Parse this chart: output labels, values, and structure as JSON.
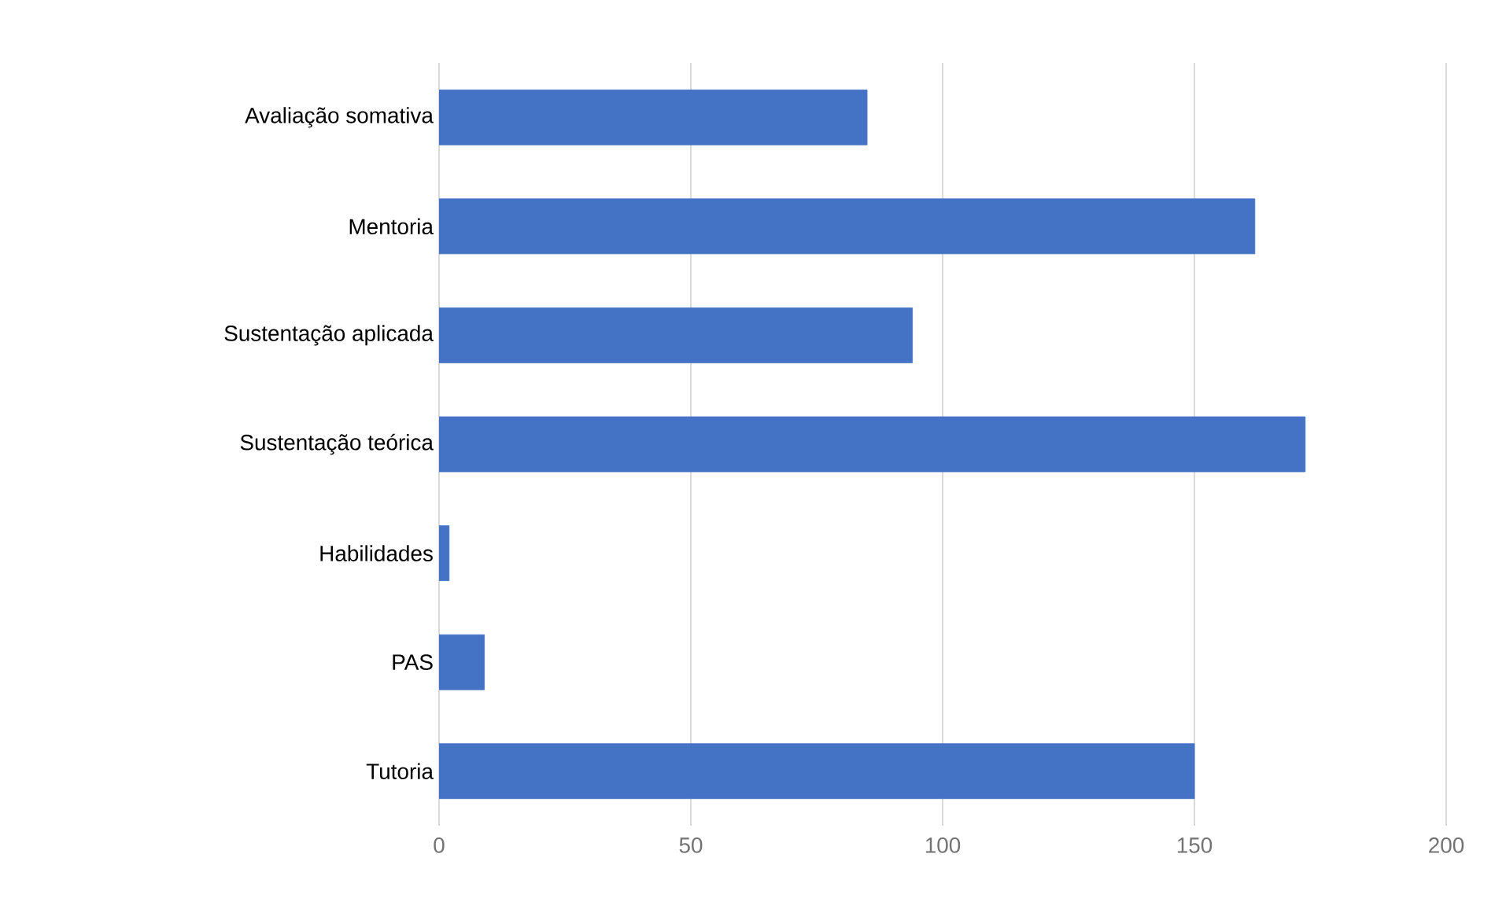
{
  "chart_data": {
    "type": "bar",
    "orientation": "horizontal",
    "categories": [
      "Avaliação somativa",
      "Mentoria",
      "Sustentação aplicada",
      "Sustentação teórica",
      "Habilidades",
      "PAS",
      "Tutoria"
    ],
    "values": [
      85,
      162,
      94,
      172,
      2,
      9,
      150
    ],
    "color": "#4472c4",
    "xlim": [
      0,
      200
    ],
    "xticks": [
      0,
      50,
      100,
      150,
      200
    ],
    "grid": "x"
  }
}
